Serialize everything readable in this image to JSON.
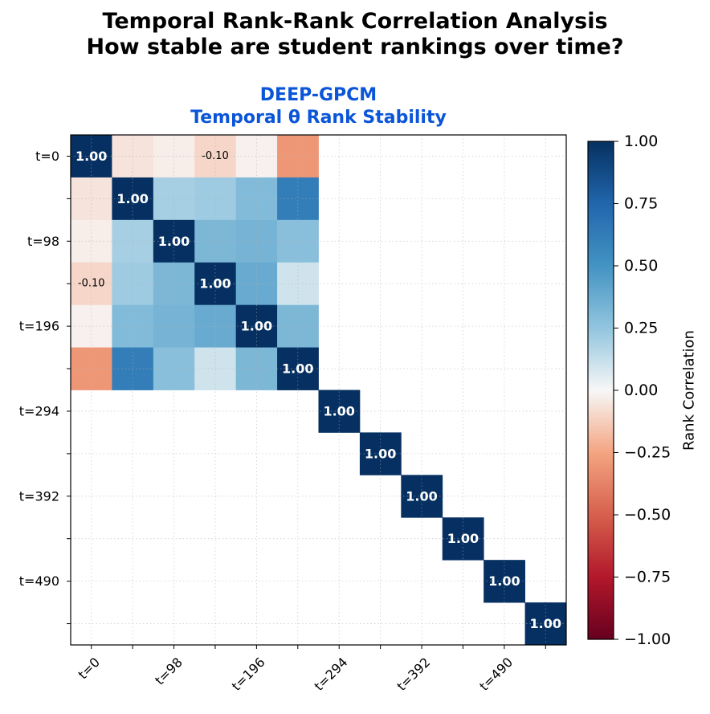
{
  "figure": {
    "title_line1": "Temporal Rank-Rank Correlation Analysis",
    "title_line2": "How stable are student rankings over time?"
  },
  "colors": {
    "subtitle": "#0a55d8",
    "cmap": [
      [
        -1.0,
        "#67001f"
      ],
      [
        -0.75,
        "#b2182b"
      ],
      [
        -0.5,
        "#d6604d"
      ],
      [
        -0.25,
        "#f4a582"
      ],
      [
        0.0,
        "#f7f7f7"
      ],
      [
        0.25,
        "#92c5de"
      ],
      [
        0.5,
        "#4393c3"
      ],
      [
        0.75,
        "#2166ac"
      ],
      [
        1.0,
        "#053061"
      ]
    ]
  },
  "chart_data": {
    "type": "heatmap",
    "title_line1": "DEEP-GPCM",
    "title_line2": "Temporal θ Rank Stability",
    "colorbar_label": "Rank Correlation",
    "colorbar_ticks": [
      "1.00",
      "0.75",
      "0.50",
      "0.25",
      "0.00",
      "−0.25",
      "−0.50",
      "−0.75",
      "−1.00"
    ],
    "colorbar_range": [
      -1.0,
      1.0
    ],
    "row_labels": [
      "t=0",
      "",
      "t=98",
      "",
      "t=196",
      "",
      "t=294",
      "",
      "t=392",
      "",
      "t=490",
      ""
    ],
    "col_labels": [
      "t=0",
      "",
      "t=98",
      "",
      "t=196",
      "",
      "t=294",
      "",
      "t=392",
      "",
      "t=490",
      ""
    ],
    "grid": true,
    "matrix": [
      [
        1.0,
        -0.06,
        -0.03,
        -0.1,
        -0.02,
        -0.3,
        null,
        null,
        null,
        null,
        null,
        null
      ],
      [
        -0.06,
        1.0,
        0.2,
        0.22,
        0.3,
        0.62,
        null,
        null,
        null,
        null,
        null,
        null
      ],
      [
        -0.03,
        0.2,
        1.0,
        0.32,
        0.34,
        0.28,
        null,
        null,
        null,
        null,
        null,
        null
      ],
      [
        -0.1,
        0.22,
        0.32,
        1.0,
        0.38,
        0.1,
        null,
        null,
        null,
        null,
        null,
        null
      ],
      [
        -0.02,
        0.3,
        0.34,
        0.38,
        1.0,
        0.32,
        null,
        null,
        null,
        null,
        null,
        null
      ],
      [
        -0.3,
        0.62,
        0.28,
        0.1,
        0.32,
        1.0,
        null,
        null,
        null,
        null,
        null,
        null
      ],
      [
        null,
        null,
        null,
        null,
        null,
        null,
        1.0,
        null,
        null,
        null,
        null,
        null
      ],
      [
        null,
        null,
        null,
        null,
        null,
        null,
        null,
        1.0,
        null,
        null,
        null,
        null
      ],
      [
        null,
        null,
        null,
        null,
        null,
        null,
        null,
        null,
        1.0,
        null,
        null,
        null
      ],
      [
        null,
        null,
        null,
        null,
        null,
        null,
        null,
        null,
        null,
        1.0,
        null,
        null
      ],
      [
        null,
        null,
        null,
        null,
        null,
        null,
        null,
        null,
        null,
        null,
        1.0,
        null
      ],
      [
        null,
        null,
        null,
        null,
        null,
        null,
        null,
        null,
        null,
        null,
        null,
        1.0
      ]
    ],
    "annotations": [
      {
        "row": 0,
        "col": 0,
        "text": "1.00"
      },
      {
        "row": 0,
        "col": 3,
        "text": "-0.10"
      },
      {
        "row": 1,
        "col": 1,
        "text": "1.00"
      },
      {
        "row": 2,
        "col": 2,
        "text": "1.00"
      },
      {
        "row": 3,
        "col": 0,
        "text": "-0.10"
      },
      {
        "row": 3,
        "col": 3,
        "text": "1.00"
      },
      {
        "row": 4,
        "col": 4,
        "text": "1.00"
      },
      {
        "row": 5,
        "col": 5,
        "text": "1.00"
      },
      {
        "row": 6,
        "col": 6,
        "text": "1.00"
      },
      {
        "row": 7,
        "col": 7,
        "text": "1.00"
      },
      {
        "row": 8,
        "col": 8,
        "text": "1.00"
      },
      {
        "row": 9,
        "col": 9,
        "text": "1.00"
      },
      {
        "row": 10,
        "col": 10,
        "text": "1.00"
      },
      {
        "row": 11,
        "col": 11,
        "text": "1.00"
      }
    ]
  }
}
